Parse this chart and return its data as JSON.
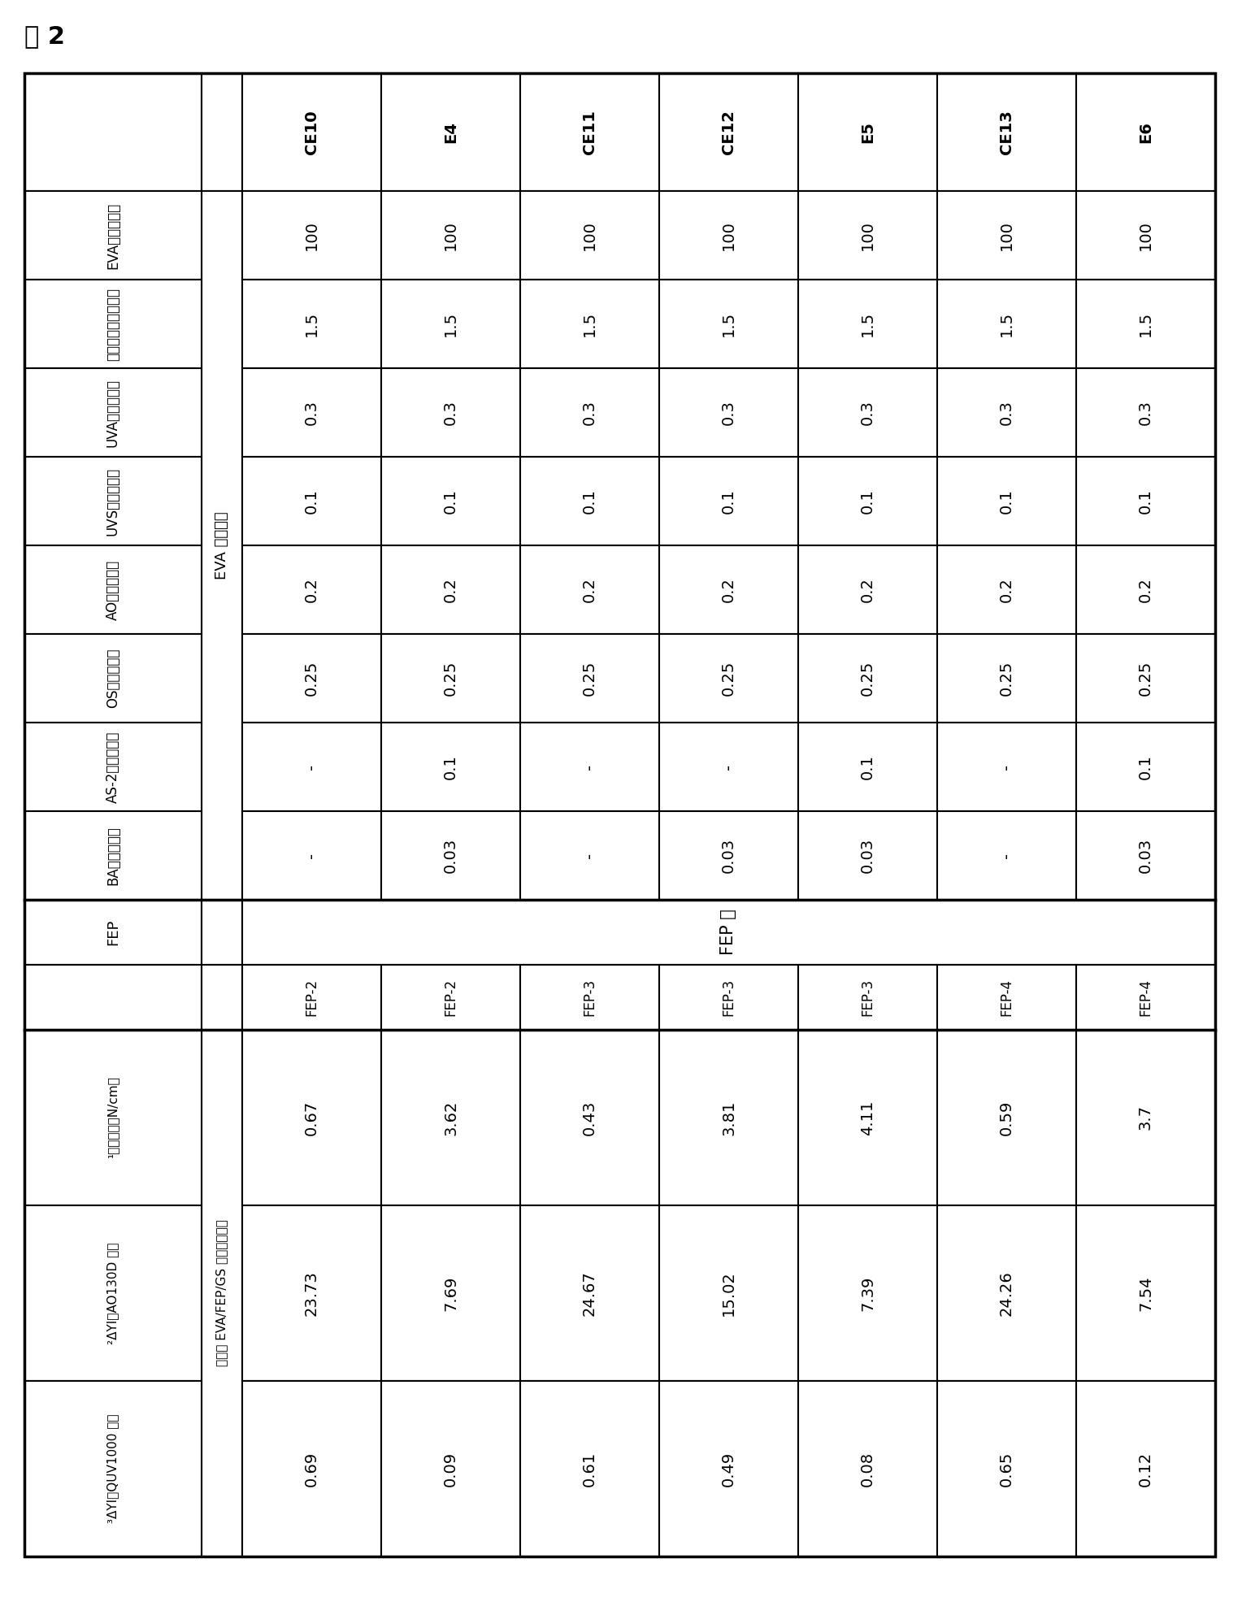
{
  "title": "表 2",
  "col_headers": [
    "CE10",
    "E4",
    "CE11",
    "CE12",
    "E5",
    "CE13",
    "E6"
  ],
  "row_labels_left": [
    "EVA（重量份）",
    "过氧化物（重量份）",
    "UVA（重量份）",
    "UVS（重量份）",
    "AO（重量份）",
    "OS（重量份）",
    "AS-2（重量份）",
    "BA（重量份）"
  ],
  "eva_section_label": "EVA 片的组成",
  "eva_data": [
    [
      "100",
      "100",
      "100",
      "100",
      "100",
      "100",
      "100"
    ],
    [
      "1.5",
      "1.5",
      "1.5",
      "1.5",
      "1.5",
      "1.5",
      "1.5"
    ],
    [
      "0.3",
      "0.3",
      "0.3",
      "0.3",
      "0.3",
      "0.3",
      "0.3"
    ],
    [
      "0.1",
      "0.1",
      "0.1",
      "0.1",
      "0.1",
      "0.1",
      "0.1"
    ],
    [
      "0.2",
      "0.2",
      "0.2",
      "0.2",
      "0.2",
      "0.2",
      "0.2"
    ],
    [
      "0.25",
      "0.25",
      "0.25",
      "0.25",
      "0.25",
      "0.25",
      "0.25"
    ],
    [
      "-",
      "0.1",
      "-",
      "-",
      "0.1",
      "-",
      "0.1"
    ],
    [
      "-",
      "0.03",
      "-",
      "0.03",
      "0.03",
      "-",
      "0.03"
    ]
  ],
  "fep_section_label": "FEP 膜",
  "fep_col_headers": [
    "FEP-2",
    "FEP-2",
    "FEP-3",
    "FEP-3",
    "FEP-3",
    "FEP-4",
    "FEP-4"
  ],
  "fep_row_label": "FEP",
  "laminate_label": "层压的 EVA/FEP/GS 三层片的性质",
  "bottom_row_labels": [
    "¹粘结强度（N/cm）",
    "²ΔYI（AO130D 后）",
    "³ΔYI（QUV1000 后）"
  ],
  "bottom_data": [
    [
      "0.67",
      "3.62",
      "0.43",
      "3.81",
      "4.11",
      "0.59",
      "3.7"
    ],
    [
      "23.73",
      "7.69",
      "24.67",
      "15.02",
      "7.39",
      "24.26",
      "7.54"
    ],
    [
      "0.69",
      "0.09",
      "0.61",
      "0.49",
      "0.08",
      "0.65",
      "0.12"
    ]
  ],
  "bg_color": "#ffffff",
  "border_color": "#000000",
  "text_color": "#000000"
}
